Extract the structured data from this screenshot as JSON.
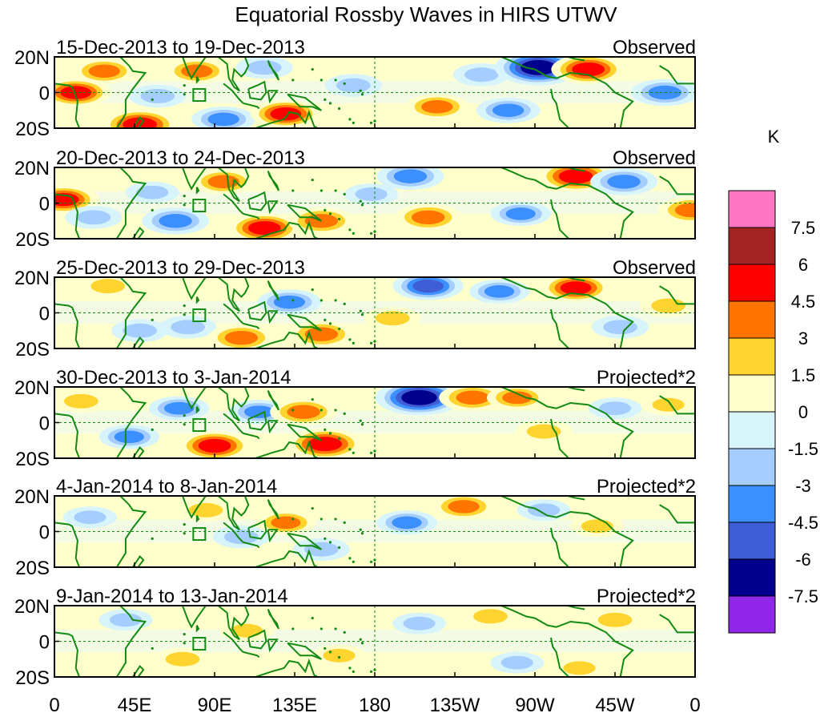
{
  "chart_data": {
    "type": "heatmap",
    "title": "Equatorial Rossby Waves in HIRS UTWV",
    "unit": "K",
    "x_ticks": [
      "0",
      "45E",
      "90E",
      "135E",
      "180",
      "135W",
      "90W",
      "45W",
      "0"
    ],
    "x_tick_lons": [
      0,
      45,
      90,
      135,
      180,
      225,
      270,
      315,
      360
    ],
    "y_ticks": [
      "20N",
      "0",
      "20S"
    ],
    "y_tick_lats": [
      20,
      0,
      -20
    ],
    "lon_range": [
      0,
      360
    ],
    "lat_range": [
      -20,
      20
    ],
    "panels": [
      {
        "period": "15-Dec-2013 to 19-Dec-2013",
        "kind": "Observed",
        "anomalies": [
          {
            "lon": 12,
            "lat": 0,
            "value": 4.5
          },
          {
            "lon": 28,
            "lat": 12,
            "value": 3.5
          },
          {
            "lon": 48,
            "lat": -18,
            "value": 5.5
          },
          {
            "lon": 58,
            "lat": -2,
            "value": -2.5
          },
          {
            "lon": 80,
            "lat": 12,
            "value": 3.5
          },
          {
            "lon": 95,
            "lat": -15,
            "value": -3.5
          },
          {
            "lon": 118,
            "lat": 14,
            "value": -2.5
          },
          {
            "lon": 130,
            "lat": -12,
            "value": 4.5
          },
          {
            "lon": 168,
            "lat": 4,
            "value": -2.5
          },
          {
            "lon": 215,
            "lat": -8,
            "value": 3.5
          },
          {
            "lon": 240,
            "lat": 10,
            "value": -2.5
          },
          {
            "lon": 255,
            "lat": -10,
            "value": -3.5
          },
          {
            "lon": 272,
            "lat": 14,
            "value": -7.0
          },
          {
            "lon": 300,
            "lat": 13,
            "value": 5.0
          },
          {
            "lon": 343,
            "lat": 0,
            "value": -4.0
          }
        ]
      },
      {
        "period": "20-Dec-2013 to 24-Dec-2013",
        "kind": "Observed",
        "anomalies": [
          {
            "lon": 5,
            "lat": 2,
            "value": 4.5
          },
          {
            "lon": 22,
            "lat": -8,
            "value": -2.5
          },
          {
            "lon": 55,
            "lat": 6,
            "value": -2.0
          },
          {
            "lon": 68,
            "lat": -10,
            "value": -4.0
          },
          {
            "lon": 95,
            "lat": 12,
            "value": 3.5
          },
          {
            "lon": 118,
            "lat": -14,
            "value": 5.0
          },
          {
            "lon": 150,
            "lat": -10,
            "value": 4.0
          },
          {
            "lon": 178,
            "lat": 5,
            "value": -2.0
          },
          {
            "lon": 200,
            "lat": 15,
            "value": -4.0
          },
          {
            "lon": 210,
            "lat": -8,
            "value": 4.0
          },
          {
            "lon": 262,
            "lat": -6,
            "value": -3.0
          },
          {
            "lon": 293,
            "lat": 15,
            "value": 5.5
          },
          {
            "lon": 320,
            "lat": 12,
            "value": -4.0
          },
          {
            "lon": 358,
            "lat": -4,
            "value": 4.0
          }
        ]
      },
      {
        "period": "25-Dec-2013 to 29-Dec-2013",
        "kind": "Observed",
        "anomalies": [
          {
            "lon": 30,
            "lat": 15,
            "value": 2.5
          },
          {
            "lon": 48,
            "lat": -10,
            "value": -2.5
          },
          {
            "lon": 75,
            "lat": -8,
            "value": -2.5
          },
          {
            "lon": 105,
            "lat": -14,
            "value": 4.0
          },
          {
            "lon": 132,
            "lat": 6,
            "value": -3.5
          },
          {
            "lon": 150,
            "lat": -12,
            "value": 4.0
          },
          {
            "lon": 190,
            "lat": -3,
            "value": 2.5
          },
          {
            "lon": 210,
            "lat": 15,
            "value": -4.5
          },
          {
            "lon": 250,
            "lat": 12,
            "value": -3.0
          },
          {
            "lon": 293,
            "lat": 14,
            "value": 4.5
          },
          {
            "lon": 318,
            "lat": -8,
            "value": -2.5
          },
          {
            "lon": 345,
            "lat": 4,
            "value": 2.5
          }
        ]
      },
      {
        "period": "30-Dec-2013 to 3-Jan-2014",
        "kind": "Projected*2",
        "anomalies": [
          {
            "lon": 15,
            "lat": 12,
            "value": 2.5
          },
          {
            "lon": 42,
            "lat": -8,
            "value": -3.0
          },
          {
            "lon": 70,
            "lat": 8,
            "value": -3.0
          },
          {
            "lon": 90,
            "lat": -13,
            "value": 5.0
          },
          {
            "lon": 115,
            "lat": 6,
            "value": -3.0
          },
          {
            "lon": 140,
            "lat": 6,
            "value": 4.0
          },
          {
            "lon": 152,
            "lat": -12,
            "value": 5.5
          },
          {
            "lon": 205,
            "lat": 14,
            "value": -7.0
          },
          {
            "lon": 235,
            "lat": 14,
            "value": 4.0
          },
          {
            "lon": 260,
            "lat": 14,
            "value": 3.0
          },
          {
            "lon": 275,
            "lat": -5,
            "value": 2.5
          },
          {
            "lon": 315,
            "lat": 8,
            "value": -2.0
          },
          {
            "lon": 345,
            "lat": 10,
            "value": 2.0
          }
        ]
      },
      {
        "period": "4-Jan-2014 to 8-Jan-2014",
        "kind": "Projected*2",
        "anomalies": [
          {
            "lon": 20,
            "lat": 8,
            "value": -2.0
          },
          {
            "lon": 85,
            "lat": 12,
            "value": 2.5
          },
          {
            "lon": 105,
            "lat": -3,
            "value": -2.5
          },
          {
            "lon": 130,
            "lat": 5,
            "value": 3.0
          },
          {
            "lon": 150,
            "lat": -10,
            "value": -2.5
          },
          {
            "lon": 198,
            "lat": 5,
            "value": -3.0
          },
          {
            "lon": 230,
            "lat": 14,
            "value": 3.5
          },
          {
            "lon": 275,
            "lat": 12,
            "value": -2.0
          },
          {
            "lon": 305,
            "lat": 3,
            "value": 2.0
          }
        ]
      },
      {
        "period": "9-Jan-2014 to 13-Jan-2014",
        "kind": "Projected*2",
        "anomalies": [
          {
            "lon": 40,
            "lat": 12,
            "value": -2.0
          },
          {
            "lon": 72,
            "lat": -10,
            "value": 2.5
          },
          {
            "lon": 108,
            "lat": 6,
            "value": 2.0
          },
          {
            "lon": 160,
            "lat": -8,
            "value": 2.0
          },
          {
            "lon": 205,
            "lat": 10,
            "value": -2.0
          },
          {
            "lon": 245,
            "lat": 14,
            "value": 2.5
          },
          {
            "lon": 260,
            "lat": -12,
            "value": -2.0
          },
          {
            "lon": 295,
            "lat": -15,
            "value": 2.0
          },
          {
            "lon": 315,
            "lat": 12,
            "value": 2.5
          }
        ]
      }
    ],
    "colorbar": {
      "labels": [
        "7.5",
        "6",
        "4.5",
        "3",
        "1.5",
        "0",
        "-1.5",
        "-3",
        "-4.5",
        "-6",
        "-7.5"
      ],
      "bounds": [
        7.5,
        6,
        4.5,
        3,
        1.5,
        0,
        -1.5,
        -3,
        -4.5,
        -6,
        -7.5
      ],
      "colors": [
        "#ff77c2",
        "#a32323",
        "#ff0000",
        "#ff7500",
        "#ffd42e",
        "#ffffcc",
        "#d8f4fb",
        "#a5ceff",
        "#3c8fff",
        "#3f5ed6",
        "#00008c",
        "#9027e8"
      ]
    },
    "line_colors": {
      "coast": "#138a13",
      "equator": "#138a13"
    }
  }
}
